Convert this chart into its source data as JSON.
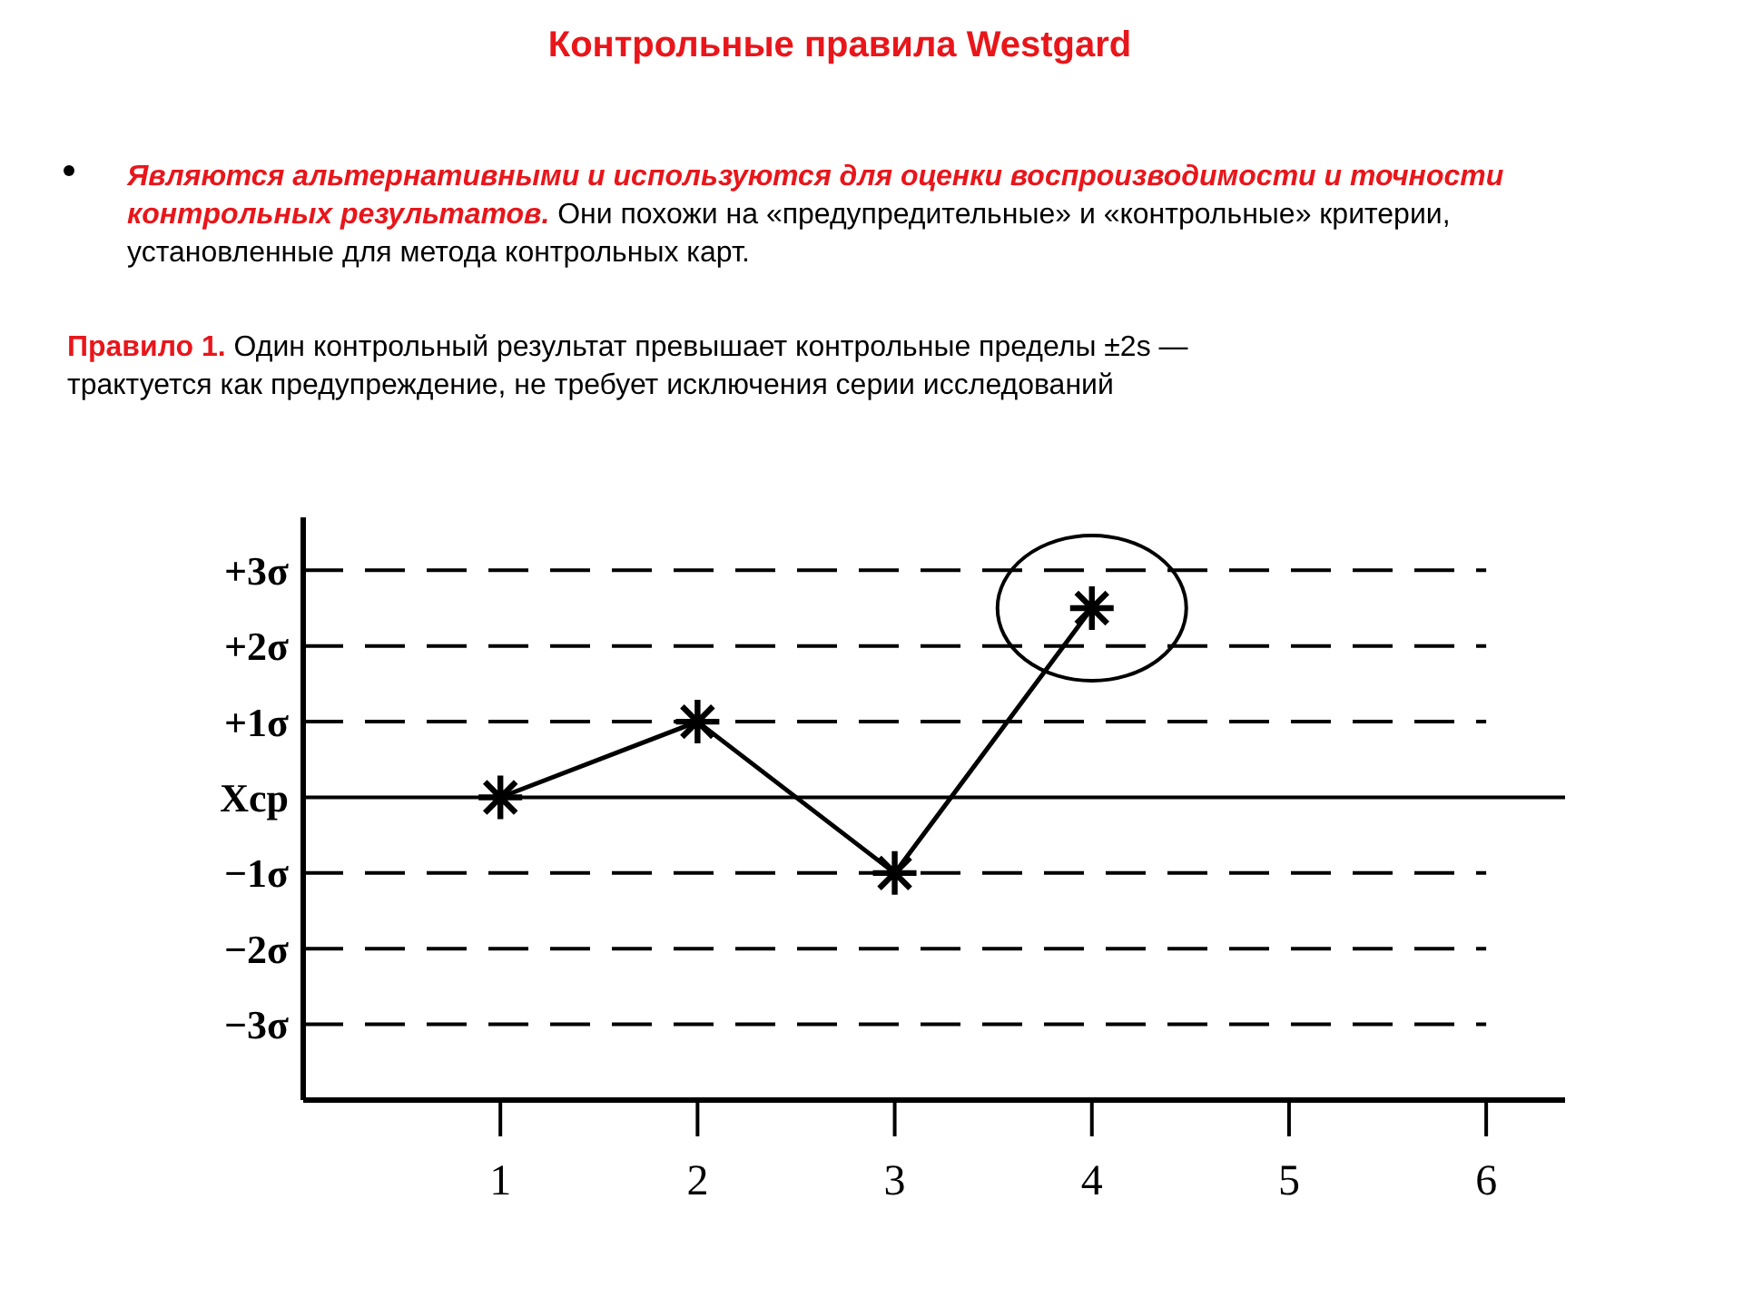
{
  "chart_data": {
    "type": "line",
    "title": "Контрольные правила Westgard",
    "annotations": [
      "Являются альтернативными и используются для оценки воспроизводимости и точности контрольных результатов.",
      "Они похожи на «предупредительные» и «контрольные» критерии, установленные для метода контрольных карт.",
      "Правило 1.",
      "Один контрольный результат превышает контрольные пределы ±2s — трактуется как предупреждение, не требует исключения серии исследований"
    ],
    "x": [
      1,
      2,
      3,
      4
    ],
    "series": [
      {
        "color": "#000000",
        "values": [
          0,
          1,
          -1,
          2.5
        ]
      }
    ],
    "marker": "cross",
    "line_style": "solid",
    "xlim": [
      0,
      6.4
    ],
    "xticks": [
      1,
      2,
      3,
      4,
      5,
      6
    ],
    "ylim": [
      -4,
      3.7
    ],
    "yticks": [
      {
        "value": 3,
        "label": "+3σ"
      },
      {
        "value": 2,
        "label": "+2σ"
      },
      {
        "value": 1,
        "label": "+1σ"
      },
      {
        "value": 0,
        "label": "Xcp"
      },
      {
        "value": -1,
        "label": "−1σ"
      },
      {
        "value": -2,
        "label": "−2σ"
      },
      {
        "value": -3,
        "label": "−3σ"
      }
    ],
    "ref_lines": [
      {
        "axis": "y",
        "value": 3,
        "line_style": "dashed"
      },
      {
        "axis": "y",
        "value": 2,
        "line_style": "dashed"
      },
      {
        "axis": "y",
        "value": 1,
        "line_style": "dashed"
      },
      {
        "axis": "y",
        "value": 0,
        "line_style": "solid"
      },
      {
        "axis": "y",
        "value": -1,
        "line_style": "dashed"
      },
      {
        "axis": "y",
        "value": -2,
        "line_style": "dashed"
      },
      {
        "axis": "y",
        "value": -3,
        "line_style": "dashed"
      }
    ]
  }
}
